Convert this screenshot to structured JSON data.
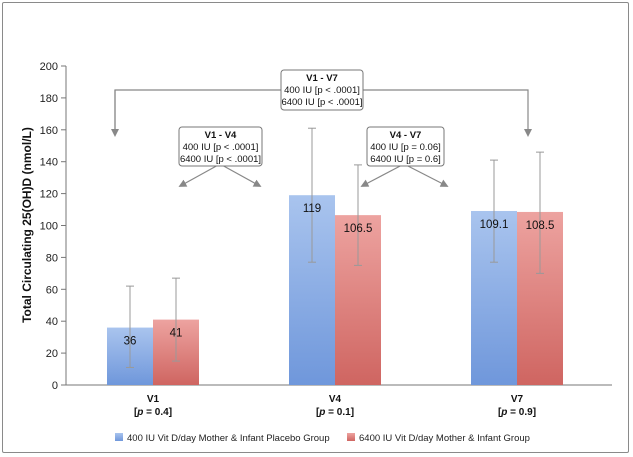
{
  "chart_data": {
    "type": "bar",
    "ylabel": "Total Circulating 25(OH)D (nmol/L)",
    "ylim": [
      0,
      200
    ],
    "yticks": [
      0,
      20,
      40,
      60,
      80,
      100,
      120,
      140,
      160,
      180,
      200
    ],
    "categories": [
      "V1",
      "V4",
      "V7"
    ],
    "category_pvalues": [
      "[p = 0.4]",
      "[p = 0.1]",
      "[p = 0.9]"
    ],
    "series": [
      {
        "name": "400 IU Vit D/day Mother & Infant Placebo Group",
        "color": "#7ea4e0",
        "values": [
          36,
          119,
          109.1
        ],
        "value_labels": [
          "36",
          "119",
          "109.1"
        ],
        "error_low": [
          11,
          77,
          77
        ],
        "error_high": [
          62,
          161,
          141
        ]
      },
      {
        "name": "6400 IU Vit D/day Mother & Infant Group",
        "color": "#d97370",
        "values": [
          41,
          106.5,
          108.5
        ],
        "value_labels": [
          "41",
          "106.5",
          "108.5"
        ],
        "error_low": [
          15,
          75,
          70
        ],
        "error_high": [
          67,
          138,
          146
        ]
      }
    ],
    "legend": "bottom",
    "grid": false,
    "annotations": [
      {
        "title": "V1 - V7",
        "lines": [
          "400 IU [p < .0001]",
          "6400 IU [p < .0001]"
        ]
      },
      {
        "title": "V1 - V4",
        "lines": [
          "400 IU [p < .0001]",
          "6400 IU [p < .0001]"
        ]
      },
      {
        "title": "V4 - V7",
        "lines": [
          "400 IU [p = 0.06]",
          "6400 IU [p = 0.6]"
        ]
      }
    ]
  }
}
